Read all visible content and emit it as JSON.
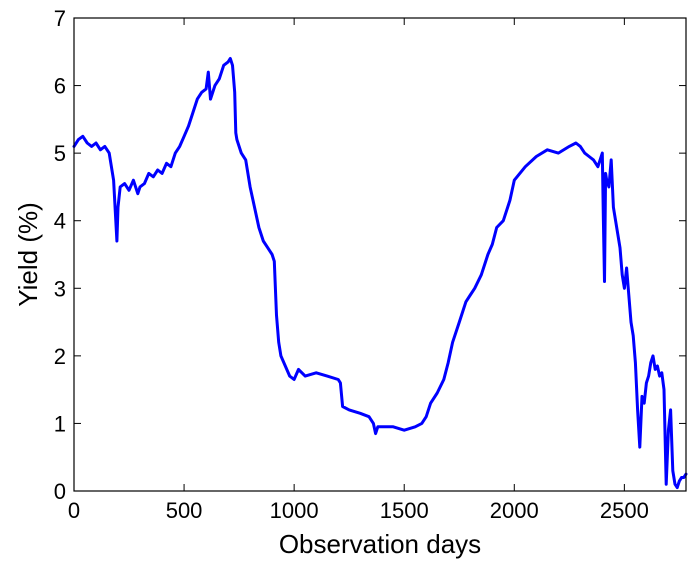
{
  "chart_data": {
    "type": "line",
    "title": "",
    "xlabel": "Observation days",
    "ylabel": "Yield (%)",
    "xlim": [
      0,
      2780
    ],
    "ylim": [
      0,
      7
    ],
    "xticks": [
      0,
      500,
      1000,
      1500,
      2000,
      2500
    ],
    "yticks": [
      0,
      1,
      2,
      3,
      4,
      5,
      6,
      7
    ],
    "grid": false,
    "legend": "none",
    "line_color": "#0000ff",
    "series": [
      {
        "x": [
          0,
          20,
          40,
          60,
          80,
          100,
          120,
          140,
          160,
          180,
          195,
          200,
          210,
          230,
          250,
          270,
          290,
          300,
          320,
          340,
          360,
          380,
          400,
          420,
          440,
          460,
          480,
          500,
          520,
          540,
          560,
          580,
          600,
          610,
          620,
          640,
          660,
          680,
          700,
          710,
          720,
          730,
          735,
          740,
          760,
          780,
          800,
          820,
          840,
          860,
          880,
          900,
          910,
          920,
          930,
          940,
          960,
          980,
          1000,
          1020,
          1050,
          1100,
          1150,
          1200,
          1210,
          1220,
          1250,
          1300,
          1340,
          1360,
          1370,
          1380,
          1400,
          1450,
          1500,
          1550,
          1580,
          1600,
          1620,
          1650,
          1680,
          1700,
          1720,
          1750,
          1780,
          1800,
          1820,
          1850,
          1880,
          1900,
          1920,
          1950,
          1980,
          2000,
          2050,
          2100,
          2150,
          2200,
          2250,
          2280,
          2300,
          2320,
          2340,
          2360,
          2380,
          2390,
          2400,
          2405,
          2410,
          2415,
          2420,
          2430,
          2440,
          2450,
          2460,
          2470,
          2480,
          2490,
          2500,
          2510,
          2520,
          2530,
          2540,
          2550,
          2560,
          2570,
          2580,
          2590,
          2600,
          2610,
          2620,
          2630,
          2640,
          2650,
          2660,
          2670,
          2680,
          2690,
          2700,
          2710,
          2720,
          2730,
          2740,
          2750,
          2760,
          2770,
          2780
        ],
        "y": [
          5.1,
          5.2,
          5.25,
          5.15,
          5.1,
          5.15,
          5.05,
          5.1,
          5.0,
          4.6,
          3.7,
          4.2,
          4.5,
          4.55,
          4.45,
          4.6,
          4.4,
          4.5,
          4.55,
          4.7,
          4.65,
          4.75,
          4.7,
          4.85,
          4.8,
          5.0,
          5.1,
          5.25,
          5.4,
          5.6,
          5.8,
          5.9,
          5.95,
          6.2,
          5.8,
          6.0,
          6.1,
          6.3,
          6.35,
          6.4,
          6.3,
          5.9,
          5.3,
          5.2,
          5.0,
          4.9,
          4.5,
          4.2,
          3.9,
          3.7,
          3.6,
          3.5,
          3.4,
          2.6,
          2.2,
          2.0,
          1.85,
          1.7,
          1.65,
          1.8,
          1.7,
          1.75,
          1.7,
          1.65,
          1.6,
          1.25,
          1.2,
          1.15,
          1.1,
          1.0,
          0.85,
          0.95,
          0.95,
          0.95,
          0.9,
          0.95,
          1.0,
          1.1,
          1.3,
          1.45,
          1.65,
          1.9,
          2.2,
          2.5,
          2.8,
          2.9,
          3.0,
          3.2,
          3.5,
          3.65,
          3.9,
          4.0,
          4.3,
          4.6,
          4.8,
          4.95,
          5.05,
          5.0,
          5.1,
          5.15,
          5.1,
          5.0,
          4.95,
          4.9,
          4.8,
          4.9,
          5.0,
          4.0,
          3.1,
          4.7,
          4.6,
          4.5,
          4.9,
          4.2,
          4.0,
          3.8,
          3.6,
          3.2,
          3.0,
          3.3,
          2.9,
          2.5,
          2.3,
          1.9,
          1.2,
          0.65,
          1.4,
          1.3,
          1.6,
          1.7,
          1.9,
          2.0,
          1.8,
          1.85,
          1.7,
          1.75,
          1.5,
          0.1,
          0.9,
          1.2,
          0.3,
          0.1,
          0.05,
          0.15,
          0.2,
          0.2,
          0.25
        ]
      }
    ]
  }
}
